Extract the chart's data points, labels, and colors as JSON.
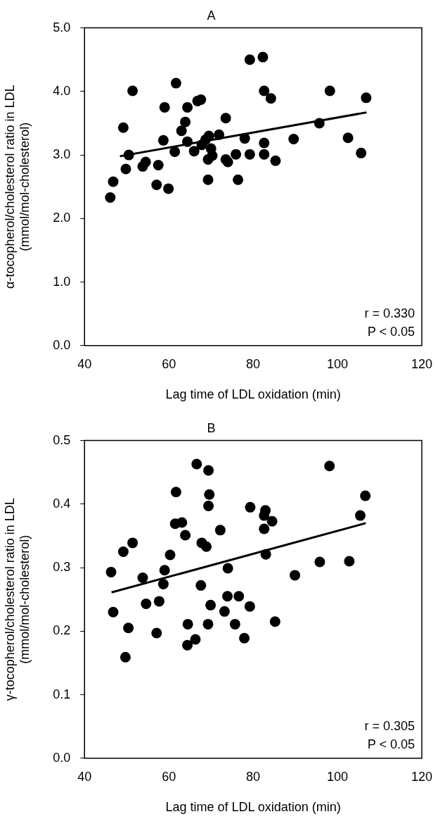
{
  "chart_data": [
    {
      "type": "scatter",
      "title": "A",
      "xlabel": "Lag time of LDL oxidation (min)",
      "ylabel": "α-tocopherol/cholesterol ratio in LDL\n(mmol/mol-cholesterol)",
      "xlim": [
        40,
        120
      ],
      "xticks": [
        40,
        60,
        80,
        100,
        120
      ],
      "ylim": [
        0,
        5
      ],
      "yticks": [
        {
          "value": 0,
          "label": "0.0"
        },
        {
          "value": 1,
          "label": "1.0"
        },
        {
          "value": 2,
          "label": "2.0"
        },
        {
          "value": 3,
          "label": "3.0"
        },
        {
          "value": 4,
          "label": "4.0"
        },
        {
          "value": 5,
          "label": "5.0"
        }
      ],
      "grid": false,
      "legend": false,
      "annotations": [
        "r = 0.330",
        "P < 0.05"
      ],
      "series": [
        {
          "marker": "circle",
          "color": "#000000",
          "x": [
            46.1,
            46.8,
            49.8,
            49.2,
            50.5,
            51.4,
            53.8,
            54.5,
            57.5,
            57.1,
            59.9,
            58.7,
            59.0,
            61.4,
            61.7,
            63.0,
            63.9,
            64.4,
            64.4,
            66.0,
            66.8,
            67.6,
            67.8,
            68.7,
            69.5,
            70.0,
            69.3,
            70.3,
            69.3,
            71.9,
            73.5,
            73.5,
            74.0,
            75.9,
            76.4,
            78.0,
            79.2,
            79.2,
            82.3,
            82.6,
            82.6,
            82.6,
            84.2,
            85.3,
            89.6,
            95.7,
            98.2,
            102.5,
            105.6,
            106.8
          ],
          "values": [
            2.33,
            2.58,
            2.78,
            3.43,
            3.0,
            4.01,
            2.82,
            2.89,
            2.84,
            2.53,
            2.47,
            3.23,
            3.75,
            3.05,
            4.13,
            3.38,
            3.52,
            3.75,
            3.21,
            3.06,
            3.85,
            3.87,
            3.16,
            3.24,
            3.3,
            3.1,
            2.93,
            2.99,
            2.61,
            3.32,
            3.58,
            2.93,
            2.89,
            3.01,
            2.61,
            3.26,
            3.01,
            4.5,
            4.54,
            4.01,
            3.19,
            3.01,
            3.89,
            2.91,
            3.25,
            3.5,
            4.01,
            3.27,
            3.03,
            3.9
          ]
        },
        {
          "type": "line",
          "marker": "none",
          "color": "#000000",
          "x": [
            48.4,
            106.9
          ],
          "values": [
            2.98,
            3.67
          ]
        }
      ]
    },
    {
      "type": "scatter",
      "title": "B",
      "xlabel": "Lag time of LDL oxidation (min)",
      "ylabel": "γ-tocopherol/cholesterol ratio in LDL\n(mmol/mol-cholesterol)",
      "xlim": [
        40,
        120
      ],
      "xticks": [
        40,
        60,
        80,
        100,
        120
      ],
      "ylim": [
        0,
        0.5
      ],
      "yticks": [
        {
          "value": 0,
          "label": "0.0"
        },
        0.1,
        0.2,
        0.3,
        0.4,
        0.5
      ],
      "grid": false,
      "legend": false,
      "annotations": [
        "r = 0.305",
        "P < 0.05"
      ],
      "series": [
        {
          "marker": "circle",
          "color": "#000000",
          "x": [
            46.3,
            49.2,
            51.4,
            53.8,
            59.0,
            58.7,
            60.3,
            61.7,
            61.5,
            63.1,
            63.9,
            66.6,
            69.4,
            69.6,
            69.4,
            67.8,
            68.9,
            72.2,
            67.6,
            74.0,
            79.3,
            82.9,
            82.6,
            84.5,
            82.6,
            83.0,
            89.9,
            95.8,
            102.8,
            98.1,
            106.6,
            105.4,
            46.8,
            54.6,
            57.7,
            50.4,
            49.7,
            57.1,
            64.5,
            66.3,
            64.4,
            69.3,
            69.9,
            73.9,
            76.6,
            73.2,
            79.2,
            75.7,
            77.9,
            85.2
          ],
          "values": [
            0.293,
            0.325,
            0.339,
            0.284,
            0.296,
            0.274,
            0.32,
            0.419,
            0.369,
            0.371,
            0.351,
            0.463,
            0.453,
            0.415,
            0.397,
            0.339,
            0.333,
            0.359,
            0.272,
            0.299,
            0.395,
            0.39,
            0.382,
            0.373,
            0.361,
            0.321,
            0.288,
            0.309,
            0.31,
            0.46,
            0.413,
            0.382,
            0.23,
            0.243,
            0.247,
            0.205,
            0.159,
            0.197,
            0.211,
            0.187,
            0.178,
            0.211,
            0.241,
            0.255,
            0.255,
            0.231,
            0.239,
            0.211,
            0.189,
            0.215
          ]
        },
        {
          "type": "line",
          "marker": "none",
          "color": "#000000",
          "x": [
            46.4,
            106.7
          ],
          "values": [
            0.261,
            0.37
          ]
        }
      ]
    }
  ]
}
